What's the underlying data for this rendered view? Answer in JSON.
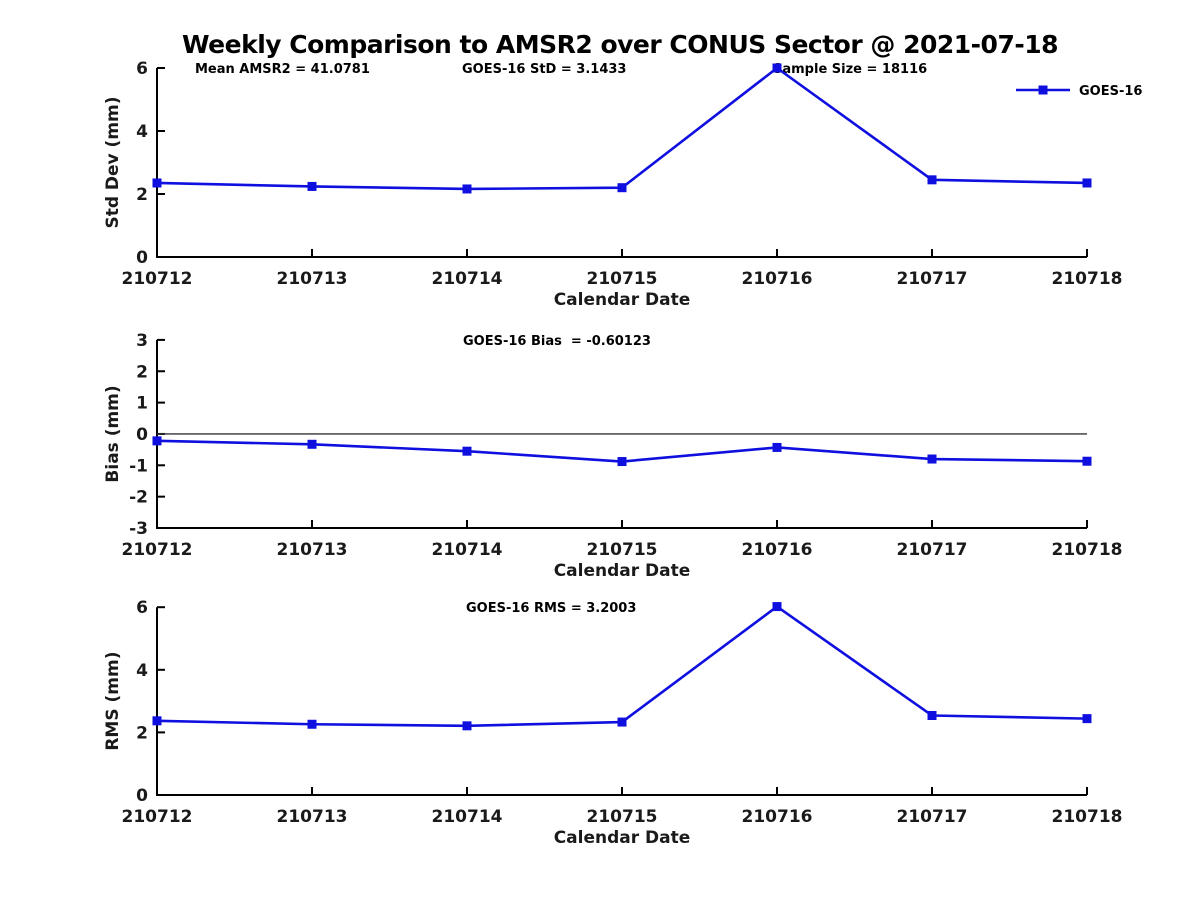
{
  "figure_title": "Weekly Comparison to AMSR2 over CONUS Sector @ 2021-07-18",
  "colors": {
    "series_line": "#0f0fe0",
    "axis": "#000000",
    "tick_text": "#1a1a1a",
    "zero_line": "#333333",
    "background": "#ffffff"
  },
  "legend": {
    "label": "GOES-16",
    "marker": "filled-square",
    "position": "top-right-first-plot"
  },
  "chart_data": [
    {
      "type": "line",
      "title": "",
      "annotations": [
        "Mean AMSR2 = 41.0781",
        "GOES-16 StD = 3.1433",
        "Sample Size = 18116"
      ],
      "categories": [
        "210712",
        "210713",
        "210714",
        "210715",
        "210716",
        "210717",
        "210718"
      ],
      "series": [
        {
          "name": "GOES-16",
          "values": [
            2.35,
            2.24,
            2.16,
            2.2,
            6.0,
            2.45,
            2.35
          ]
        }
      ],
      "xlabel": "Calendar Date",
      "ylabel": "Std Dev (mm)",
      "ylim": [
        0,
        6
      ],
      "yticks": [
        0,
        2,
        4,
        6
      ],
      "grid": false,
      "legend": true,
      "zero_line": false
    },
    {
      "type": "line",
      "title": "",
      "annotations": [
        "GOES-16 Bias  = -0.60123"
      ],
      "categories": [
        "210712",
        "210713",
        "210714",
        "210715",
        "210716",
        "210717",
        "210718"
      ],
      "series": [
        {
          "name": "GOES-16",
          "values": [
            -0.22,
            -0.33,
            -0.55,
            -0.88,
            -0.43,
            -0.8,
            -0.87
          ]
        }
      ],
      "xlabel": "Calendar Date",
      "ylabel": "Bias (mm)",
      "ylim": [
        -3,
        3
      ],
      "yticks": [
        -3,
        -2,
        -1,
        0,
        1,
        2,
        3
      ],
      "grid": false,
      "legend": false,
      "zero_line": true
    },
    {
      "type": "line",
      "title": "",
      "annotations": [
        "GOES-16 RMS = 3.2003"
      ],
      "categories": [
        "210712",
        "210713",
        "210714",
        "210715",
        "210716",
        "210717",
        "210718"
      ],
      "series": [
        {
          "name": "GOES-16",
          "values": [
            2.37,
            2.26,
            2.21,
            2.33,
            6.02,
            2.54,
            2.44
          ]
        }
      ],
      "xlabel": "Calendar Date",
      "ylabel": "RMS (mm)",
      "ylim": [
        0,
        6
      ],
      "yticks": [
        0,
        2,
        4,
        6
      ],
      "grid": false,
      "legend": false,
      "zero_line": false
    }
  ]
}
